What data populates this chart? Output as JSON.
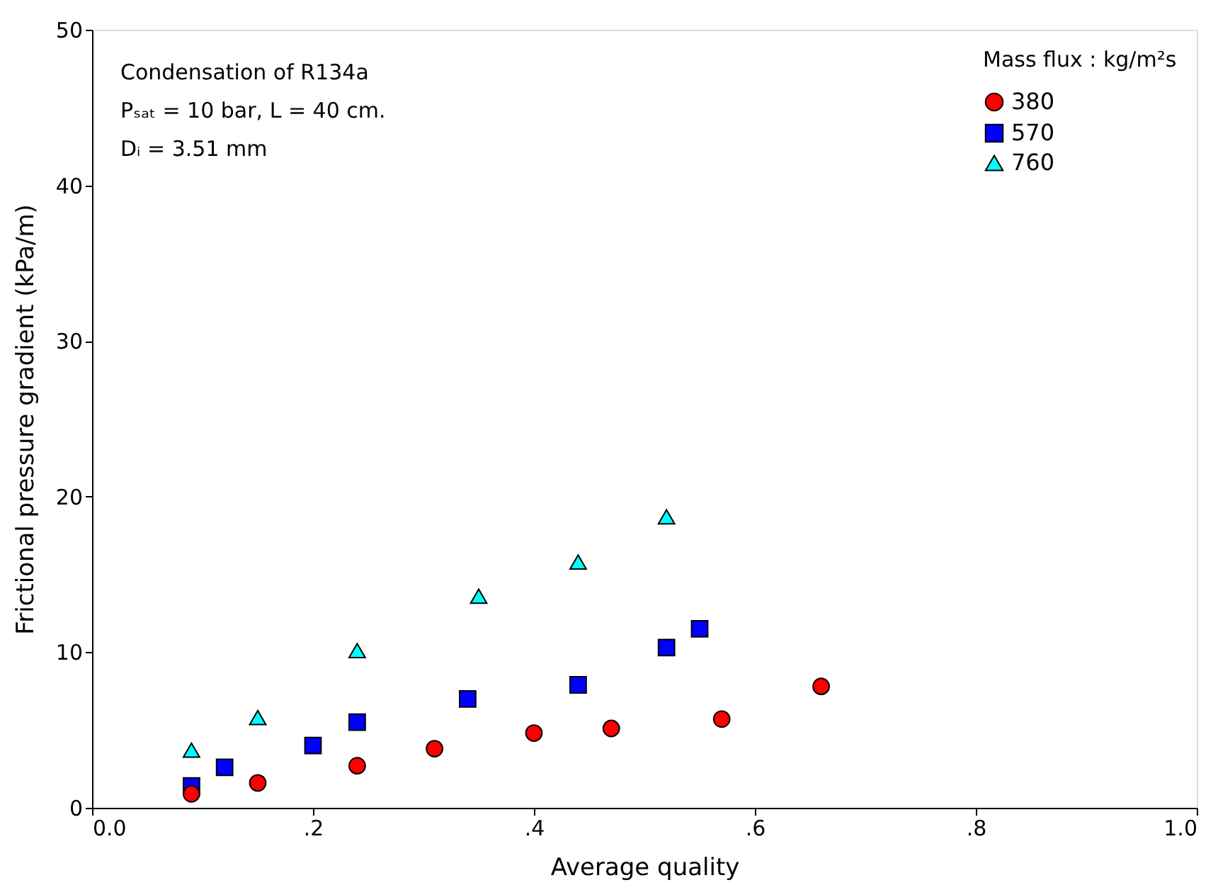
{
  "chart_data": {
    "type": "scatter",
    "xlabel": "Average quality",
    "ylabel": "Frictional pressure gradient (kPa/m)",
    "legend_title": "Mass flux : kg/m²s",
    "legend": "top right",
    "grid": false,
    "annotations": [
      "Condensation of R134a",
      "Pₛₐₜ = 10 bar, L = 40 cm.",
      "Dᵢ = 3.51 mm"
    ],
    "xlim": [
      0,
      1
    ],
    "ylim": [
      0,
      50
    ],
    "xticks": [
      {
        "value": 0,
        "label": "0.0"
      },
      {
        "value": 0.2,
        "label": ".2"
      },
      {
        "value": 0.4,
        "label": ".4"
      },
      {
        "value": 0.6,
        "label": ".6"
      },
      {
        "value": 0.8,
        "label": ".8"
      },
      {
        "value": 1,
        "label": "1.0"
      }
    ],
    "yticks": [
      0,
      10,
      20,
      30,
      40,
      50
    ],
    "series": [
      {
        "name": "380",
        "color": "#ff0000",
        "marker": "circle",
        "x": [
          0.09,
          0.15,
          0.24,
          0.31,
          0.4,
          0.47,
          0.57,
          0.66
        ],
        "values": [
          0.9,
          1.6,
          2.7,
          3.8,
          4.8,
          5.1,
          5.7,
          7.8
        ]
      },
      {
        "name": "570",
        "color": "#0000ff",
        "marker": "square",
        "x": [
          0.09,
          0.12,
          0.2,
          0.24,
          0.34,
          0.44,
          0.52,
          0.55
        ],
        "values": [
          1.4,
          2.6,
          4.0,
          5.5,
          7.0,
          7.9,
          10.3,
          11.5
        ]
      },
      {
        "name": "760",
        "color": "#00ffff",
        "marker": "triangle",
        "x": [
          0.09,
          0.15,
          0.24,
          0.35,
          0.44,
          0.52
        ],
        "values": [
          3.7,
          5.8,
          10.1,
          13.6,
          15.8,
          18.7
        ]
      }
    ]
  }
}
